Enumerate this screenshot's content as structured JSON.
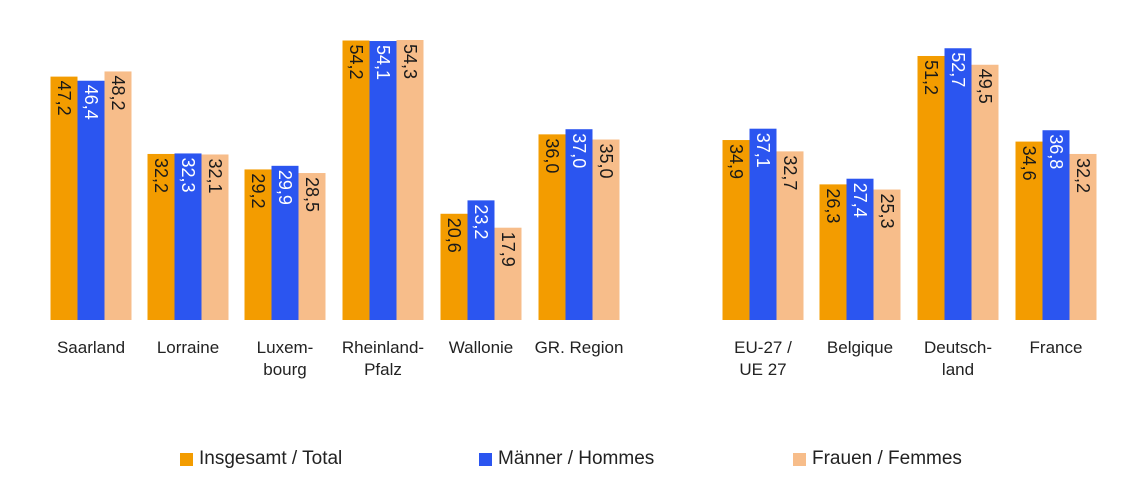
{
  "chart_data": {
    "type": "bar",
    "categories": [
      "Saarland",
      "Lorraine",
      "Luxem-\nbourg",
      "Rheinland-\nPfalz",
      "Wallonie",
      "GR. Region",
      "EU-27 /\nUE 27",
      "Belgique",
      "Deutsch-\nland",
      "France"
    ],
    "series": [
      {
        "name": "Insgesamt / Total",
        "color": "#F39C00",
        "label_color": "#1a1a1a",
        "values": [
          47.2,
          32.2,
          29.2,
          54.2,
          20.6,
          36.0,
          34.9,
          26.3,
          51.2,
          34.6
        ]
      },
      {
        "name": "Männer / Hommes",
        "color": "#2B55F0",
        "label_color": "#ffffff",
        "values": [
          46.4,
          32.3,
          29.9,
          54.1,
          23.2,
          37.0,
          37.1,
          27.4,
          52.7,
          36.8
        ]
      },
      {
        "name": "Frauen / Femmes",
        "color": "#F7BD8A",
        "label_color": "#1a1a1a",
        "values": [
          48.2,
          32.1,
          28.5,
          54.3,
          17.9,
          35.0,
          32.7,
          25.3,
          49.5,
          32.2
        ]
      }
    ],
    "value_labels": [
      [
        "47,2",
        "32,2",
        "29,2",
        "54,2",
        "20,6",
        "36,0",
        "34,9",
        "26,3",
        "51,2",
        "34,6"
      ],
      [
        "46,4",
        "32,3",
        "29,9",
        "54,1",
        "23,2",
        "37,0",
        "37,1",
        "27,4",
        "52,7",
        "36,8"
      ],
      [
        "48,2",
        "32,1",
        "28,5",
        "54,3",
        "17,9",
        "35,0",
        "32,7",
        "25,3",
        "49,5",
        "32,2"
      ]
    ],
    "ylim": [
      0,
      58
    ],
    "grid": false,
    "legend_position": "bottom"
  }
}
